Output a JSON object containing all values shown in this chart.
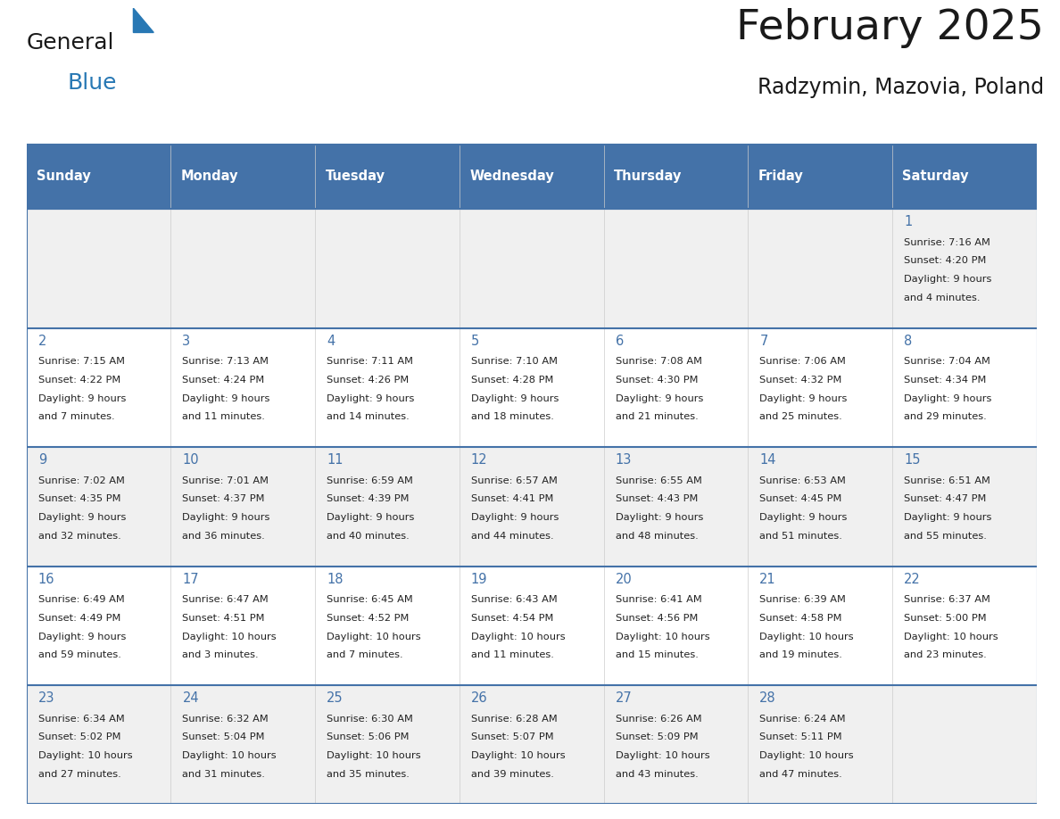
{
  "title": "February 2025",
  "subtitle": "Radzymin, Mazovia, Poland",
  "header_bg": "#4472a8",
  "header_text": "#ffffff",
  "cell_bg_odd": "#f0f0f0",
  "cell_bg_even": "#ffffff",
  "border_color": "#4472a8",
  "text_color": "#222222",
  "day_num_color": "#4472a8",
  "day_headers": [
    "Sunday",
    "Monday",
    "Tuesday",
    "Wednesday",
    "Thursday",
    "Friday",
    "Saturday"
  ],
  "days": [
    {
      "day": 1,
      "col": 6,
      "row": 0,
      "sunrise": "7:16 AM",
      "sunset": "4:20 PM",
      "daylight": "9 hours",
      "daylight2": "and 4 minutes."
    },
    {
      "day": 2,
      "col": 0,
      "row": 1,
      "sunrise": "7:15 AM",
      "sunset": "4:22 PM",
      "daylight": "9 hours",
      "daylight2": "and 7 minutes."
    },
    {
      "day": 3,
      "col": 1,
      "row": 1,
      "sunrise": "7:13 AM",
      "sunset": "4:24 PM",
      "daylight": "9 hours",
      "daylight2": "and 11 minutes."
    },
    {
      "day": 4,
      "col": 2,
      "row": 1,
      "sunrise": "7:11 AM",
      "sunset": "4:26 PM",
      "daylight": "9 hours",
      "daylight2": "and 14 minutes."
    },
    {
      "day": 5,
      "col": 3,
      "row": 1,
      "sunrise": "7:10 AM",
      "sunset": "4:28 PM",
      "daylight": "9 hours",
      "daylight2": "and 18 minutes."
    },
    {
      "day": 6,
      "col": 4,
      "row": 1,
      "sunrise": "7:08 AM",
      "sunset": "4:30 PM",
      "daylight": "9 hours",
      "daylight2": "and 21 minutes."
    },
    {
      "day": 7,
      "col": 5,
      "row": 1,
      "sunrise": "7:06 AM",
      "sunset": "4:32 PM",
      "daylight": "9 hours",
      "daylight2": "and 25 minutes."
    },
    {
      "day": 8,
      "col": 6,
      "row": 1,
      "sunrise": "7:04 AM",
      "sunset": "4:34 PM",
      "daylight": "9 hours",
      "daylight2": "and 29 minutes."
    },
    {
      "day": 9,
      "col": 0,
      "row": 2,
      "sunrise": "7:02 AM",
      "sunset": "4:35 PM",
      "daylight": "9 hours",
      "daylight2": "and 32 minutes."
    },
    {
      "day": 10,
      "col": 1,
      "row": 2,
      "sunrise": "7:01 AM",
      "sunset": "4:37 PM",
      "daylight": "9 hours",
      "daylight2": "and 36 minutes."
    },
    {
      "day": 11,
      "col": 2,
      "row": 2,
      "sunrise": "6:59 AM",
      "sunset": "4:39 PM",
      "daylight": "9 hours",
      "daylight2": "and 40 minutes."
    },
    {
      "day": 12,
      "col": 3,
      "row": 2,
      "sunrise": "6:57 AM",
      "sunset": "4:41 PM",
      "daylight": "9 hours",
      "daylight2": "and 44 minutes."
    },
    {
      "day": 13,
      "col": 4,
      "row": 2,
      "sunrise": "6:55 AM",
      "sunset": "4:43 PM",
      "daylight": "9 hours",
      "daylight2": "and 48 minutes."
    },
    {
      "day": 14,
      "col": 5,
      "row": 2,
      "sunrise": "6:53 AM",
      "sunset": "4:45 PM",
      "daylight": "9 hours",
      "daylight2": "and 51 minutes."
    },
    {
      "day": 15,
      "col": 6,
      "row": 2,
      "sunrise": "6:51 AM",
      "sunset": "4:47 PM",
      "daylight": "9 hours",
      "daylight2": "and 55 minutes."
    },
    {
      "day": 16,
      "col": 0,
      "row": 3,
      "sunrise": "6:49 AM",
      "sunset": "4:49 PM",
      "daylight": "9 hours",
      "daylight2": "and 59 minutes."
    },
    {
      "day": 17,
      "col": 1,
      "row": 3,
      "sunrise": "6:47 AM",
      "sunset": "4:51 PM",
      "daylight": "10 hours",
      "daylight2": "and 3 minutes."
    },
    {
      "day": 18,
      "col": 2,
      "row": 3,
      "sunrise": "6:45 AM",
      "sunset": "4:52 PM",
      "daylight": "10 hours",
      "daylight2": "and 7 minutes."
    },
    {
      "day": 19,
      "col": 3,
      "row": 3,
      "sunrise": "6:43 AM",
      "sunset": "4:54 PM",
      "daylight": "10 hours",
      "daylight2": "and 11 minutes."
    },
    {
      "day": 20,
      "col": 4,
      "row": 3,
      "sunrise": "6:41 AM",
      "sunset": "4:56 PM",
      "daylight": "10 hours",
      "daylight2": "and 15 minutes."
    },
    {
      "day": 21,
      "col": 5,
      "row": 3,
      "sunrise": "6:39 AM",
      "sunset": "4:58 PM",
      "daylight": "10 hours",
      "daylight2": "and 19 minutes."
    },
    {
      "day": 22,
      "col": 6,
      "row": 3,
      "sunrise": "6:37 AM",
      "sunset": "5:00 PM",
      "daylight": "10 hours",
      "daylight2": "and 23 minutes."
    },
    {
      "day": 23,
      "col": 0,
      "row": 4,
      "sunrise": "6:34 AM",
      "sunset": "5:02 PM",
      "daylight": "10 hours",
      "daylight2": "and 27 minutes."
    },
    {
      "day": 24,
      "col": 1,
      "row": 4,
      "sunrise": "6:32 AM",
      "sunset": "5:04 PM",
      "daylight": "10 hours",
      "daylight2": "and 31 minutes."
    },
    {
      "day": 25,
      "col": 2,
      "row": 4,
      "sunrise": "6:30 AM",
      "sunset": "5:06 PM",
      "daylight": "10 hours",
      "daylight2": "and 35 minutes."
    },
    {
      "day": 26,
      "col": 3,
      "row": 4,
      "sunrise": "6:28 AM",
      "sunset": "5:07 PM",
      "daylight": "10 hours",
      "daylight2": "and 39 minutes."
    },
    {
      "day": 27,
      "col": 4,
      "row": 4,
      "sunrise": "6:26 AM",
      "sunset": "5:09 PM",
      "daylight": "10 hours",
      "daylight2": "and 43 minutes."
    },
    {
      "day": 28,
      "col": 5,
      "row": 4,
      "sunrise": "6:24 AM",
      "sunset": "5:11 PM",
      "daylight": "10 hours",
      "daylight2": "and 47 minutes."
    }
  ],
  "num_rows": 5,
  "num_cols": 7,
  "logo_text1": "General",
  "logo_text2": "Blue",
  "logo_color1": "#1a1a1a",
  "logo_color2": "#2878b4",
  "logo_triangle_color": "#2878b4",
  "fig_width": 11.88,
  "fig_height": 9.18,
  "dpi": 100
}
